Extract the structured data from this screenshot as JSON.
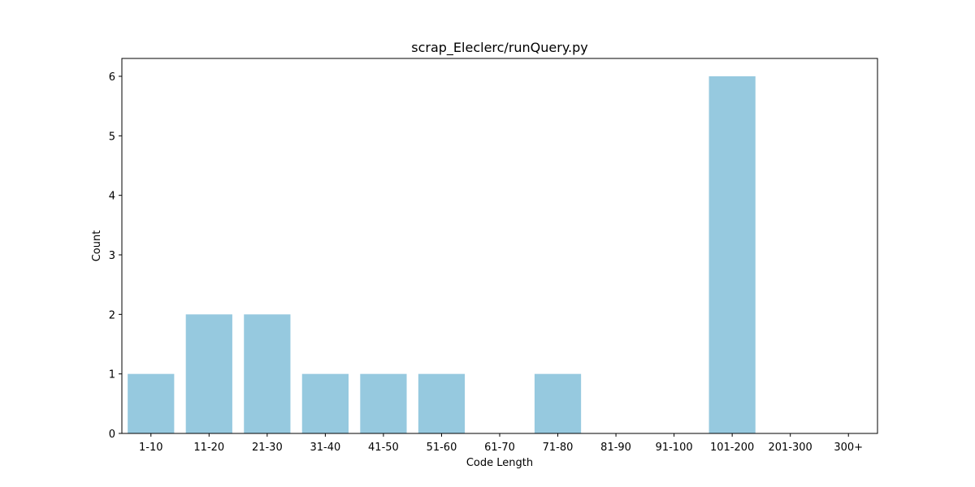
{
  "chart_data": {
    "type": "bar",
    "title": "scrap_Eleclerc/runQuery.py",
    "xlabel": "Code Length",
    "ylabel": "Count",
    "categories": [
      "1-10",
      "11-20",
      "21-30",
      "31-40",
      "41-50",
      "51-60",
      "61-70",
      "71-80",
      "81-90",
      "91-100",
      "101-200",
      "201-300",
      "300+"
    ],
    "values": [
      1,
      2,
      2,
      1,
      1,
      1,
      0,
      1,
      0,
      0,
      6,
      0,
      0
    ],
    "ylim": [
      0,
      6.3
    ],
    "yticks": [
      "0",
      "1",
      "2",
      "3",
      "4",
      "5",
      "6"
    ],
    "bar_color": "#96c9df",
    "grid": false,
    "legend": "none"
  }
}
